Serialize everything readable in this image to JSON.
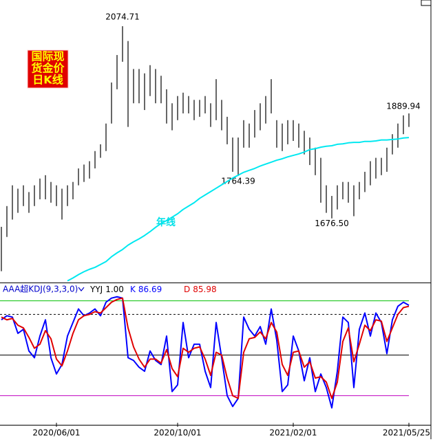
{
  "chart_data": [
    {
      "type": "hl-bar",
      "logo": [
        "国际现",
        "货金价",
        "日K线"
      ],
      "color": "#000000",
      "highs": [
        1659,
        1702,
        1745,
        1738,
        1745,
        1731,
        1745,
        1759,
        1766,
        1752,
        1745,
        1738,
        1745,
        1752,
        1780,
        1788,
        1795,
        1816,
        1830,
        1873,
        1958,
        2015,
        2074.71,
        2044,
        1986,
        1986,
        1977,
        1994,
        1986,
        1972,
        1944,
        1915,
        1930,
        1937,
        1930,
        1922,
        1922,
        1930,
        1915,
        1965,
        1922,
        1887,
        1844,
        1844,
        1880,
        1873,
        1901,
        1915,
        1930,
        1965,
        1880,
        1873,
        1880,
        1880,
        1873,
        1858,
        1844,
        1823,
        1802,
        1745,
        1723,
        1745,
        1752,
        1752,
        1745,
        1752,
        1773,
        1795,
        1802,
        1802,
        1823,
        1851,
        1873,
        1889.94,
        1894
      ],
      "lows": [
        1567,
        1638,
        1674,
        1688,
        1702,
        1688,
        1702,
        1716,
        1716,
        1709,
        1702,
        1674,
        1702,
        1716,
        1745,
        1752,
        1759,
        1780,
        1802,
        1816,
        1873,
        1944,
        2001,
        1866,
        1915,
        1915,
        1901,
        1930,
        1915,
        1915,
        1873,
        1859,
        1880,
        1894,
        1894,
        1880,
        1887,
        1894,
        1866,
        1880,
        1859,
        1830,
        1773,
        1764.39,
        1823,
        1823,
        1844,
        1859,
        1873,
        1894,
        1823,
        1816,
        1830,
        1837,
        1823,
        1809,
        1787,
        1766,
        1709,
        1688,
        1676.5,
        1695,
        1716,
        1709,
        1681,
        1716,
        1731,
        1745,
        1759,
        1766,
        1773,
        1809,
        1823,
        1851,
        1866
      ],
      "high_labels": [
        null,
        null,
        null,
        null,
        null,
        null,
        null,
        null,
        null,
        null,
        null,
        null,
        null,
        null,
        null,
        null,
        null,
        null,
        null,
        null,
        null,
        null,
        "2074.71",
        null,
        null,
        null,
        null,
        null,
        null,
        null,
        null,
        null,
        null,
        null,
        null,
        null,
        null,
        null,
        null,
        null,
        null,
        null,
        null,
        null,
        null,
        null,
        null,
        null,
        null,
        null,
        null,
        null,
        null,
        null,
        null,
        null,
        null,
        null,
        null,
        null,
        null,
        null,
        null,
        null,
        null,
        null,
        null,
        null,
        null,
        null,
        null,
        null,
        null,
        "1889.94",
        null
      ],
      "low_labels": [
        null,
        null,
        null,
        null,
        null,
        null,
        null,
        null,
        null,
        null,
        null,
        null,
        null,
        null,
        null,
        null,
        null,
        null,
        null,
        null,
        null,
        null,
        null,
        null,
        null,
        null,
        null,
        null,
        null,
        null,
        null,
        null,
        null,
        null,
        null,
        null,
        null,
        null,
        null,
        null,
        null,
        null,
        null,
        "1764.39",
        null,
        null,
        null,
        null,
        null,
        null,
        null,
        null,
        null,
        null,
        null,
        null,
        null,
        null,
        null,
        null,
        "1676.50",
        null,
        null,
        null,
        null,
        null,
        null,
        null,
        null,
        null,
        null,
        null,
        null,
        null,
        null
      ],
      "series": [
        {
          "name": "年线",
          "color": "#00e8f0",
          "values": [
            null,
            null,
            null,
            null,
            null,
            null,
            null,
            null,
            null,
            null,
            null,
            null,
            1547,
            1553,
            1560,
            1566,
            1571,
            1575,
            1581,
            1587,
            1597,
            1605,
            1612,
            1621,
            1628,
            1634,
            1641,
            1649,
            1658,
            1666,
            1672,
            1679,
            1686,
            1695,
            1702,
            1709,
            1718,
            1725,
            1732,
            1739,
            1746,
            1753,
            1760,
            1766,
            1772,
            1776,
            1780,
            1785,
            1789,
            1793,
            1797,
            1800,
            1804,
            1807,
            1810,
            1814,
            1819,
            1821,
            1824,
            1826,
            1827,
            1830,
            1831,
            1833,
            1834,
            1834,
            1836,
            1836,
            1837,
            1839,
            1839,
            1840,
            1841,
            1843,
            1844
          ]
        }
      ],
      "ylim": [
        1545,
        2129
      ]
    },
    {
      "type": "line",
      "title": "AAA超KDJ(9,3,3,0)",
      "categories": [
        null,
        null,
        null,
        null,
        null,
        null,
        null,
        null,
        null,
        null,
        "2020/06/01",
        null,
        null,
        null,
        null,
        null,
        null,
        null,
        null,
        null,
        null,
        null,
        null,
        null,
        null,
        null,
        null,
        null,
        null,
        null,
        null,
        null,
        "2020/10/01",
        null,
        null,
        null,
        null,
        null,
        null,
        null,
        null,
        null,
        null,
        null,
        null,
        null,
        null,
        null,
        null,
        null,
        null,
        null,
        null,
        "2021/02/01",
        null,
        null,
        null,
        null,
        null,
        null,
        null,
        null,
        null,
        null,
        null,
        null,
        null,
        null,
        null,
        null,
        null,
        null,
        null,
        null,
        "2021/05/25"
      ],
      "yyj": {
        "name": "YYJ",
        "value": 1,
        "value_label": "1.00"
      },
      "series": [
        {
          "name": "K",
          "color": "#0000ff",
          "values": [
            76,
            79,
            78,
            66,
            69,
            53,
            48,
            64,
            76,
            48,
            36,
            43,
            64,
            74,
            84,
            79,
            81,
            84,
            79,
            89,
            92,
            93,
            92,
            48,
            46,
            41,
            38,
            53,
            46,
            43,
            64,
            23,
            28,
            74,
            48,
            58,
            58,
            38,
            26,
            74,
            48,
            20,
            12,
            18,
            78,
            69,
            64,
            71,
            58,
            84,
            61,
            23,
            28,
            64,
            53,
            31,
            48,
            23,
            36,
            26,
            11,
            38,
            78,
            74,
            26,
            69,
            81,
            64,
            81,
            74,
            51,
            76,
            86,
            89,
            86.69
          ]
        },
        {
          "name": "D",
          "color": "#e00000",
          "values": [
            78,
            76,
            77,
            72,
            70,
            63,
            55,
            58,
            68,
            62,
            47,
            42,
            53,
            66,
            76,
            79,
            80,
            82,
            81,
            85,
            89,
            91,
            92,
            70,
            56,
            47,
            41,
            47,
            47,
            44,
            54,
            40,
            34,
            55,
            52,
            55,
            56,
            47,
            35,
            52,
            50,
            33,
            20,
            18,
            52,
            62,
            63,
            67,
            62,
            74,
            67,
            43,
            35,
            52,
            53,
            41,
            45,
            33,
            34,
            30,
            18,
            30,
            60,
            70,
            45,
            58,
            72,
            68,
            76,
            75,
            60,
            70,
            80,
            85,
            85.98
          ]
        }
      ],
      "hlines": [
        {
          "value": 90,
          "color": "#00c000"
        },
        {
          "value": 80,
          "color": "#000000",
          "dashed": true
        },
        {
          "value": 50,
          "color": "#000000"
        },
        {
          "value": 20,
          "color": "#c000c0"
        }
      ],
      "ylim": [
        0,
        102
      ]
    }
  ]
}
